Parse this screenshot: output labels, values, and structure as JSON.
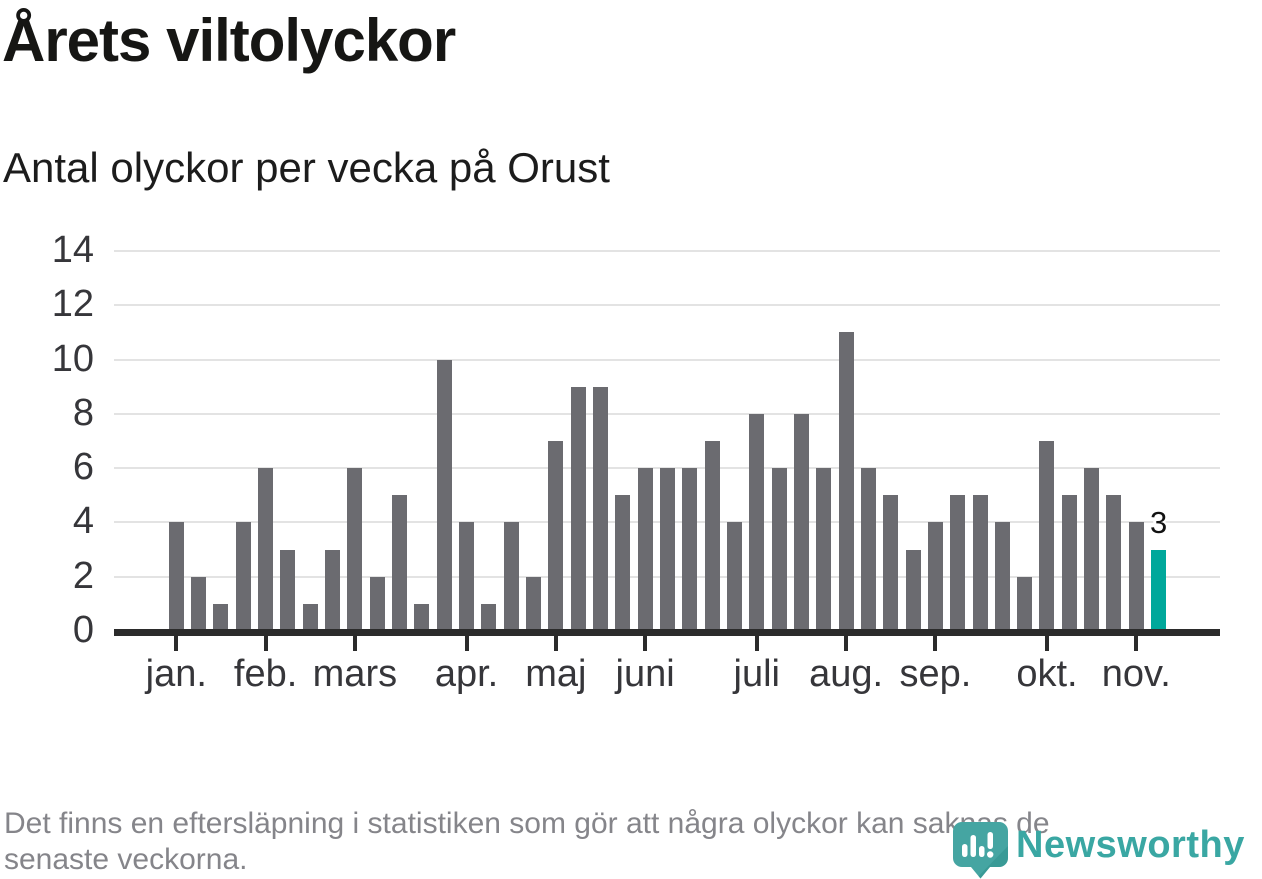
{
  "title": "Årets viltolyckor",
  "subtitle": "Antal olyckor per vecka på Orust",
  "footer": {
    "line1": "Det finns en eftersläpning i statistiken som gör att några olyckor kan saknas de",
    "line2": "senaste veckorna."
  },
  "logo": {
    "wordmark": "Newsworthy",
    "icon": "newsworthy-speech-bubble-bar-chart-icon",
    "icon_color": "#45a5a2",
    "icon_fold_color": "#2f918d",
    "wordmark_color": "#3aa7a3"
  },
  "colors": {
    "bar_gray": "#6b6b70",
    "bar_highlight_teal": "#00a89b",
    "gridline": "#e3e3e3",
    "axis": "#2b2b2b",
    "title_text": "#161614",
    "axis_text": "#36363a",
    "footer_text": "#85858a"
  },
  "chart_data": {
    "type": "bar",
    "title": "Årets viltolyckor",
    "subtitle": "Antal olyckor per vecka på Orust",
    "x_unit": "vecka",
    "weeks": [
      1,
      2,
      3,
      4,
      5,
      6,
      7,
      8,
      9,
      10,
      11,
      12,
      13,
      14,
      15,
      16,
      17,
      18,
      19,
      20,
      21,
      22,
      23,
      24,
      25,
      26,
      27,
      28,
      29,
      30,
      31,
      32,
      33,
      34,
      35,
      36,
      37,
      38,
      39,
      40,
      41,
      42,
      43,
      44,
      45
    ],
    "values": [
      4,
      2,
      1,
      4,
      6,
      3,
      1,
      3,
      6,
      2,
      5,
      1,
      10,
      4,
      1,
      4,
      2,
      7,
      9,
      9,
      5,
      6,
      6,
      6,
      7,
      4,
      8,
      6,
      8,
      6,
      11,
      6,
      5,
      3,
      4,
      5,
      5,
      4,
      2,
      7,
      5,
      6,
      5,
      4,
      3
    ],
    "bar_color": "#6b6b70",
    "highlight": {
      "index": 44,
      "week": 45,
      "value": 3,
      "label": "3",
      "color": "#00a89b"
    },
    "yticks": [
      0,
      2,
      4,
      6,
      8,
      10,
      12,
      14
    ],
    "ylim": [
      0,
      14
    ],
    "grid": "horizontal",
    "legend": "none",
    "month_ticks": [
      {
        "label": "jan.",
        "week": 1
      },
      {
        "label": "feb.",
        "week": 5
      },
      {
        "label": "mars",
        "week": 9
      },
      {
        "label": "apr.",
        "week": 14
      },
      {
        "label": "maj",
        "week": 18
      },
      {
        "label": "juni",
        "week": 22
      },
      {
        "label": "juli",
        "week": 27
      },
      {
        "label": "aug.",
        "week": 31
      },
      {
        "label": "sep.",
        "week": 35
      },
      {
        "label": "okt.",
        "week": 40
      },
      {
        "label": "nov.",
        "week": 44
      }
    ]
  }
}
